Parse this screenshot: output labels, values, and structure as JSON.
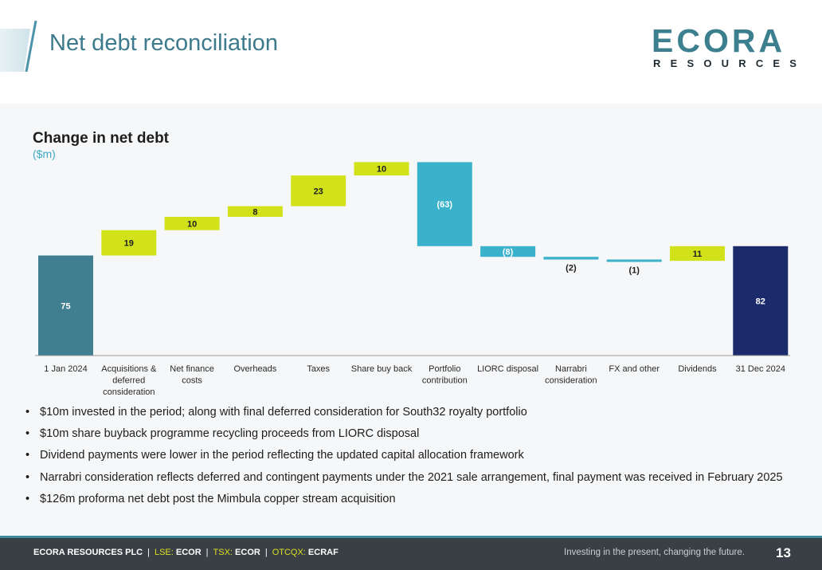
{
  "slide": {
    "title": "Net debt reconciliation",
    "logo_word": "ECORA",
    "logo_sub": "RESOURCES"
  },
  "colors": {
    "bookend_start": "#3f7f91",
    "bookend_end": "#1b2a6b",
    "increase": "#d2e21a",
    "decrease": "#3bb2cb",
    "axis": "#9a9a9a"
  },
  "chart_data": {
    "type": "waterfall",
    "title": "Change in net debt",
    "unit": "($m)",
    "items": [
      {
        "category": "1 Jan 2024",
        "value": 75,
        "label": "75",
        "kind": "total"
      },
      {
        "category": "Acquisitions & deferred consideration",
        "value": 19,
        "label": "19",
        "kind": "increase"
      },
      {
        "category": "Net finance costs",
        "value": 10,
        "label": "10",
        "kind": "increase"
      },
      {
        "category": "Overheads",
        "value": 8,
        "label": "8",
        "kind": "increase"
      },
      {
        "category": "Taxes",
        "value": 23,
        "label": "23",
        "kind": "increase"
      },
      {
        "category": "Share buy back",
        "value": 10,
        "label": "10",
        "kind": "increase"
      },
      {
        "category": "Portfolio contribution",
        "value": -63,
        "label": "(63)",
        "kind": "decrease"
      },
      {
        "category": "LIORC disposal",
        "value": -8,
        "label": "(8)",
        "kind": "decrease"
      },
      {
        "category": "Narrabri consideration",
        "value": -2,
        "label": "(2)",
        "kind": "decrease"
      },
      {
        "category": "FX and other",
        "value": -1,
        "label": "(1)",
        "kind": "decrease"
      },
      {
        "category": "Dividends",
        "value": 11,
        "label": "11",
        "kind": "increase"
      },
      {
        "category": "31 Dec 2024",
        "value": 82,
        "label": "82",
        "kind": "total"
      }
    ],
    "tick_labels": [
      [
        "1 Jan 2024"
      ],
      [
        "Acquisitions &",
        "deferred",
        "consideration"
      ],
      [
        "Net finance",
        "costs"
      ],
      [
        "Overheads"
      ],
      [
        "Taxes"
      ],
      [
        "Share buy back"
      ],
      [
        "Portfolio",
        "contribution"
      ],
      [
        "LIORC disposal"
      ],
      [
        "Narrabri",
        "consideration"
      ],
      [
        "FX and other"
      ],
      [
        "Dividends"
      ],
      [
        "31 Dec 2024"
      ]
    ],
    "ylim": [
      0,
      150
    ],
    "grid": false,
    "legend": "none"
  },
  "bullets": [
    "$10m invested in the period; along with final deferred consideration for South32 royalty portfolio",
    "$10m share buyback programme recycling proceeds from LIORC disposal",
    "Dividend payments were lower in the period reflecting the updated capital allocation framework",
    "Narrabri consideration reflects deferred and contingent payments under the 2021 sale arrangement, final payment was received in February 2025",
    "$126m proforma net debt post the Mimbula copper stream acquisition"
  ],
  "footer": {
    "company": "ECORA RESOURCES PLC",
    "sep": "|",
    "lse_label": "LSE:",
    "lse_ticker": "ECOR",
    "tsx_label": "TSX:",
    "tsx_ticker": "ECOR",
    "otc_label": "OTCQX:",
    "otc_ticker": "ECRAF",
    "tagline": "Investing in the present, changing the future.",
    "page_number": "13"
  }
}
